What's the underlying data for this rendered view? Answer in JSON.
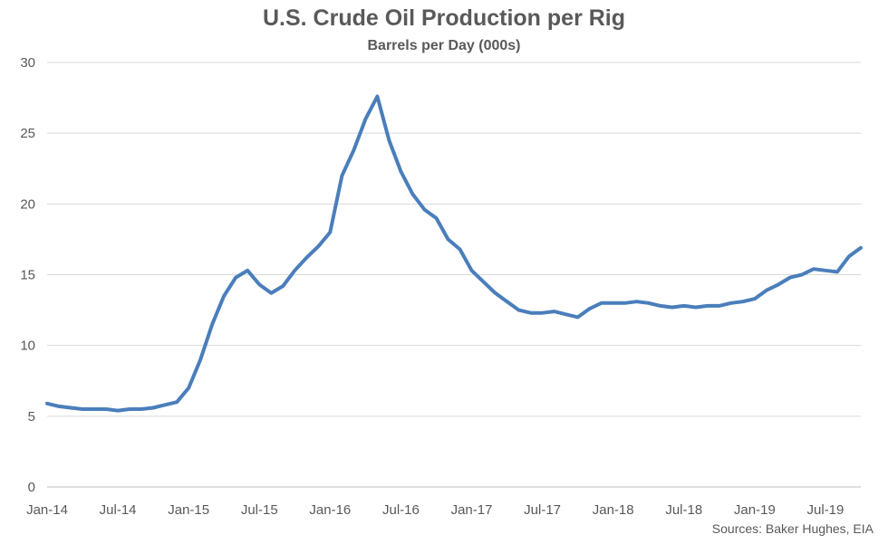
{
  "chart_data": {
    "type": "line",
    "title": "U.S. Crude Oil Production per Rig",
    "subtitle": "Barrels per Day (000s)",
    "source": "Sources: Baker Hughes, EIA",
    "ylim": [
      0,
      30
    ],
    "y_ticks": [
      0,
      5,
      10,
      15,
      20,
      25,
      30
    ],
    "x_tick_labels": [
      "Jan-14",
      "Jul-14",
      "Jan-15",
      "Jul-15",
      "Jan-16",
      "Jul-16",
      "Jan-17",
      "Jul-17",
      "Jan-18",
      "Jul-18",
      "Jan-19",
      "Jul-19"
    ],
    "x_range": [
      "2014-01",
      "2019-10"
    ],
    "grid": "horizontal",
    "legend": "none",
    "series": [
      {
        "color": "#4a7ebb",
        "x": [
          "2014-01",
          "2014-02",
          "2014-03",
          "2014-04",
          "2014-05",
          "2014-06",
          "2014-07",
          "2014-08",
          "2014-09",
          "2014-10",
          "2014-11",
          "2014-12",
          "2015-01",
          "2015-02",
          "2015-03",
          "2015-04",
          "2015-05",
          "2015-06",
          "2015-07",
          "2015-08",
          "2015-09",
          "2015-10",
          "2015-11",
          "2015-12",
          "2016-01",
          "2016-02",
          "2016-03",
          "2016-04",
          "2016-05",
          "2016-06",
          "2016-07",
          "2016-08",
          "2016-09",
          "2016-10",
          "2016-11",
          "2016-12",
          "2017-01",
          "2017-02",
          "2017-03",
          "2017-04",
          "2017-05",
          "2017-06",
          "2017-07",
          "2017-08",
          "2017-09",
          "2017-10",
          "2017-11",
          "2017-12",
          "2018-01",
          "2018-02",
          "2018-03",
          "2018-04",
          "2018-05",
          "2018-06",
          "2018-07",
          "2018-08",
          "2018-09",
          "2018-10",
          "2018-11",
          "2018-12",
          "2019-01",
          "2019-02",
          "2019-03",
          "2019-04",
          "2019-05",
          "2019-06",
          "2019-07",
          "2019-08",
          "2019-09",
          "2019-10"
        ],
        "values": [
          5.9,
          5.7,
          5.6,
          5.5,
          5.5,
          5.5,
          5.4,
          5.5,
          5.5,
          5.6,
          5.8,
          6.0,
          7.0,
          9.0,
          11.5,
          13.5,
          14.8,
          15.3,
          14.3,
          13.7,
          14.2,
          15.3,
          16.2,
          17.0,
          18.0,
          22.0,
          23.8,
          26.0,
          27.6,
          24.5,
          22.3,
          20.7,
          19.6,
          19.0,
          17.5,
          16.8,
          15.3,
          14.5,
          13.7,
          13.1,
          12.5,
          12.3,
          12.3,
          12.4,
          12.2,
          12.0,
          12.6,
          13.0,
          13.0,
          13.0,
          13.1,
          13.0,
          12.8,
          12.7,
          12.8,
          12.7,
          12.8,
          12.8,
          13.0,
          13.1,
          13.3,
          13.9,
          14.3,
          14.8,
          15.0,
          15.4,
          15.3,
          15.2,
          16.3,
          16.9
        ]
      }
    ]
  }
}
